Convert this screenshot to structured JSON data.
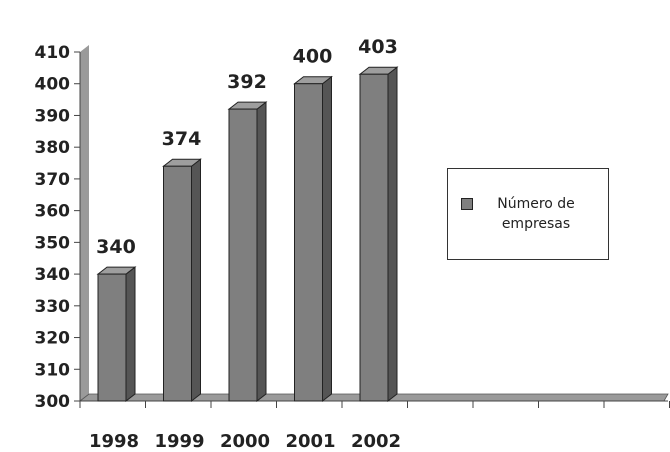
{
  "chart_data": {
    "type": "bar",
    "categories": [
      "1998",
      "1999",
      "2000",
      "2001",
      "2002"
    ],
    "series": [
      {
        "name": "Número de empresas",
        "values": [
          340,
          374,
          392,
          400,
          403
        ]
      }
    ],
    "ylim": [
      300,
      410
    ],
    "yticks": [
      300,
      310,
      320,
      330,
      340,
      350,
      360,
      370,
      380,
      390,
      400,
      410
    ],
    "title": "",
    "xlabel": "",
    "ylabel": "",
    "legend_position": "right",
    "bar_color": "#7f7f7f",
    "style": "3d-column"
  }
}
